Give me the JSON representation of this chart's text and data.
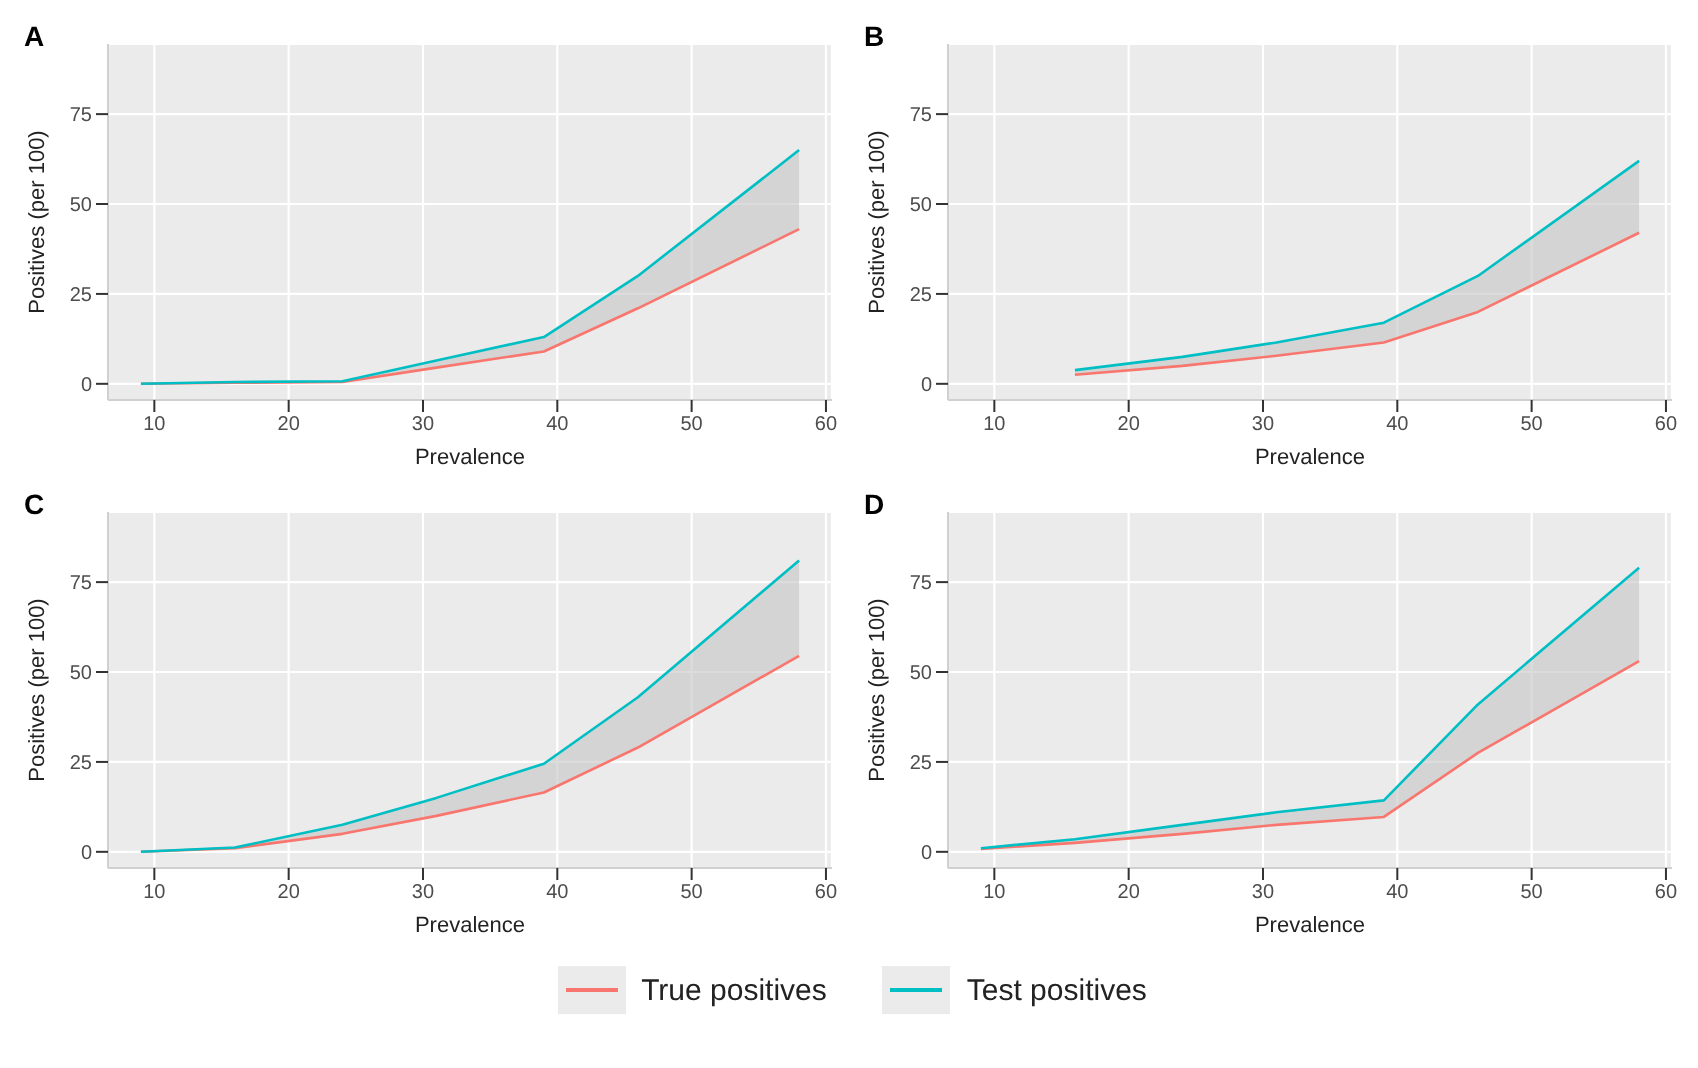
{
  "chart_data": [
    {
      "type": "line",
      "title": "A",
      "xlabel": "Prevalence",
      "ylabel": "Positives (per 100)",
      "x": [
        9,
        16,
        24,
        31,
        39,
        46,
        58
      ],
      "xlim": [
        6.55,
        60.45
      ],
      "ylim": [
        -4.5,
        94.5
      ],
      "xticks": [
        10,
        20,
        30,
        40,
        50,
        60
      ],
      "yticks": [
        0,
        25,
        50,
        75
      ],
      "grid": true,
      "legend": "bottom",
      "series": [
        {
          "name": "True positives",
          "color": "#f8766d",
          "values": [
            0,
            0.3,
            0.5,
            4.5,
            9,
            21,
            43
          ]
        },
        {
          "name": "Test positives",
          "color": "#00bfc4",
          "values": [
            0,
            0.5,
            0.7,
            6.5,
            13,
            30,
            65
          ],
          "lower": [
            0,
            0.3,
            0.5,
            4.5,
            9,
            21,
            43
          ],
          "upper": [
            0,
            0.5,
            0.7,
            6.5,
            13,
            30,
            65
          ]
        }
      ]
    },
    {
      "type": "line",
      "title": "B",
      "xlabel": "Prevalence",
      "ylabel": "Positives (per 100)",
      "x": [
        16,
        24,
        31,
        39,
        46,
        58
      ],
      "xlim": [
        6.55,
        60.45
      ],
      "ylim": [
        -4.5,
        94.5
      ],
      "xticks": [
        10,
        20,
        30,
        40,
        50,
        60
      ],
      "yticks": [
        0,
        25,
        50,
        75
      ],
      "grid": true,
      "series": [
        {
          "color": "#f8766d",
          "values": [
            2.5,
            5,
            7.8,
            11.5,
            20,
            42
          ]
        },
        {
          "color": "#00bfc4",
          "values": [
            3.8,
            7.5,
            11.5,
            17,
            30,
            62
          ],
          "lower": [
            2.5,
            5,
            7.8,
            11.5,
            20,
            42
          ],
          "upper": [
            3.8,
            7.5,
            11.5,
            17,
            30,
            62
          ]
        }
      ]
    },
    {
      "type": "line",
      "title": "C",
      "xlabel": "Prevalence",
      "ylabel": "Positives (per 100)",
      "x": [
        9,
        16,
        24,
        31,
        39,
        46,
        58
      ],
      "xlim": [
        6.55,
        60.45
      ],
      "ylim": [
        -4.5,
        94.5
      ],
      "xticks": [
        10,
        20,
        30,
        40,
        50,
        60
      ],
      "yticks": [
        0,
        25,
        50,
        75
      ],
      "grid": true,
      "series": [
        {
          "color": "#f8766d",
          "values": [
            0,
            1,
            5,
            10,
            16.5,
            29,
            54.5
          ]
        },
        {
          "color": "#00bfc4",
          "values": [
            0,
            1.2,
            7.5,
            15,
            24.5,
            43,
            81
          ],
          "lower": [
            0,
            1,
            5,
            10,
            16.5,
            29,
            54.5
          ],
          "upper": [
            0,
            1.2,
            7.5,
            15,
            24.5,
            43,
            81
          ]
        }
      ]
    },
    {
      "type": "line",
      "title": "D",
      "xlabel": "Prevalence",
      "ylabel": "Positives (per 100)",
      "x": [
        9,
        16,
        24,
        31,
        39,
        46,
        58
      ],
      "xlim": [
        6.55,
        60.45
      ],
      "ylim": [
        -4.5,
        94.5
      ],
      "xticks": [
        10,
        20,
        30,
        40,
        50,
        60
      ],
      "yticks": [
        0,
        25,
        50,
        75
      ],
      "grid": true,
      "series": [
        {
          "color": "#f8766d",
          "values": [
            0.8,
            2.5,
            5,
            7.5,
            9.7,
            27.5,
            53
          ]
        },
        {
          "color": "#00bfc4",
          "values": [
            1,
            3.5,
            7.5,
            11,
            14.3,
            41,
            79
          ],
          "lower": [
            0.8,
            2.5,
            5,
            7.5,
            9.7,
            27.5,
            53
          ],
          "upper": [
            1,
            3.5,
            7.5,
            11,
            14.3,
            41,
            79
          ]
        }
      ]
    }
  ]
}
